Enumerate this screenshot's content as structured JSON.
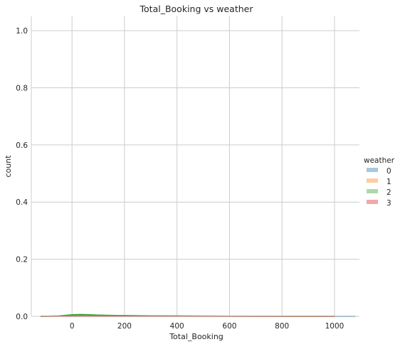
{
  "chart_data": {
    "type": "area",
    "title": "Total_Booking vs weather",
    "xlabel": "Total_Booking",
    "ylabel": "count",
    "xlim": [
      -155,
      1095
    ],
    "ylim": [
      0,
      1.05
    ],
    "xticks": [
      0,
      200,
      400,
      600,
      800,
      1000
    ],
    "yticks": [
      0.0,
      0.2,
      0.4,
      0.6,
      0.8,
      1.0
    ],
    "grid": true,
    "legend": {
      "title": "weather",
      "placement": "right"
    },
    "series": [
      {
        "name": "0",
        "color": "#1f77b4",
        "x": [
          -120,
          -50,
          0,
          30,
          60,
          100,
          150,
          200,
          300,
          400,
          500,
          600,
          700,
          800,
          900,
          1000,
          1080
        ],
        "y": [
          0.0,
          0.0008,
          0.0035,
          0.0042,
          0.004,
          0.0034,
          0.0028,
          0.0024,
          0.0018,
          0.0013,
          0.0009,
          0.0006,
          0.0004,
          0.00025,
          0.00015,
          0.0001,
          5e-05
        ]
      },
      {
        "name": "1",
        "color": "#ff7f0e",
        "x": [
          -120,
          -50,
          0,
          30,
          60,
          100,
          150,
          200,
          300,
          400,
          500,
          600,
          700,
          800,
          900,
          1000
        ],
        "y": [
          0.0,
          0.001,
          0.0042,
          0.0052,
          0.0048,
          0.0038,
          0.003,
          0.0025,
          0.0018,
          0.0012,
          0.0008,
          0.0005,
          0.0003,
          0.00018,
          0.0001,
          5e-05
        ]
      },
      {
        "name": "2",
        "color": "#2ca02c",
        "x": [
          -120,
          -50,
          0,
          30,
          60,
          100,
          150,
          200,
          300,
          400,
          500,
          600,
          700,
          800,
          900,
          1000
        ],
        "y": [
          0.0,
          0.0015,
          0.0055,
          0.0065,
          0.0058,
          0.0045,
          0.0033,
          0.0026,
          0.0017,
          0.0011,
          0.0007,
          0.0004,
          0.00025,
          0.00015,
          8e-05,
          4e-05
        ]
      },
      {
        "name": "3",
        "color": "#d62728",
        "x": [
          -120,
          1000
        ],
        "y": [
          0.0,
          0.0
        ]
      }
    ]
  }
}
